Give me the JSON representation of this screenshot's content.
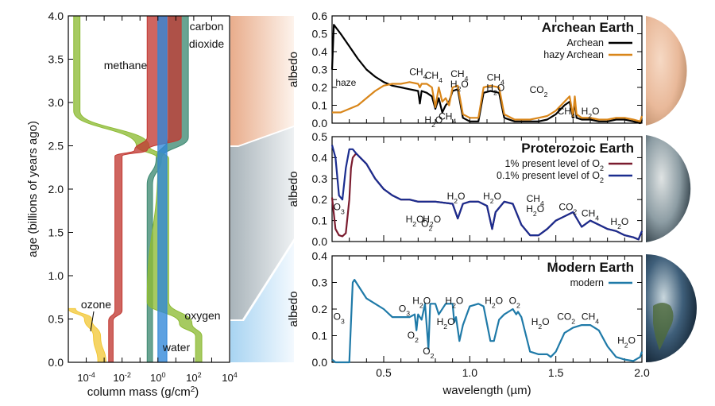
{
  "chart_data": [
    {
      "id": "atmosphere",
      "type": "area",
      "title": "",
      "xlabel": "column mass (g/cm2)",
      "ylabel": "age (billions of years ago)",
      "xscale": "log",
      "xlim_log10": [
        -5,
        4
      ],
      "ylim": [
        0,
        4
      ],
      "xticks": [
        "10-4",
        "10-2",
        "100",
        "102",
        "104"
      ],
      "xticks_log10": [
        -4,
        -2,
        0,
        2,
        4
      ],
      "yticks": [
        "0.0",
        "0.5",
        "1.0",
        "1.5",
        "2.0",
        "2.5",
        "3.0",
        "3.5",
        "4.0"
      ],
      "series": [
        {
          "name": "carbon dioxide",
          "label": "carbon dioxide",
          "color": "#3f8a73",
          "bands": [
            [
              4.0,
              0.6,
              1.7
            ],
            [
              2.6,
              0.6,
              1.7
            ],
            [
              2.35,
              -0.1,
              0.2
            ],
            [
              2.05,
              -0.6,
              -0.3
            ],
            [
              0.0,
              -0.6,
              -0.3
            ]
          ]
        },
        {
          "name": "methane",
          "label": "methane",
          "color": "#c23a33",
          "bands": [
            [
              4.0,
              -0.6,
              1.3
            ],
            [
              2.6,
              -0.6,
              1.3
            ],
            [
              2.45,
              -1.3,
              -0.6
            ],
            [
              2.38,
              -2.4,
              -2.0
            ],
            [
              0.6,
              -2.4,
              -2.0
            ],
            [
              0.48,
              -2.75,
              -2.5
            ],
            [
              0.0,
              -2.75,
              -2.5
            ]
          ]
        },
        {
          "name": "oxygen",
          "label": "oxygen",
          "color": "#8dbb34",
          "bands": [
            [
              4.0,
              -4.7,
              -4.35
            ],
            [
              2.9,
              -4.7,
              -4.35
            ],
            [
              2.5,
              -1.2,
              -0.5
            ],
            [
              2.35,
              0.0,
              0.6
            ],
            [
              0.7,
              -0.6,
              0.6
            ],
            [
              0.45,
              1.2,
              1.9
            ],
            [
              0.3,
              2.1,
              2.45
            ],
            [
              0.0,
              2.1,
              2.45
            ]
          ]
        },
        {
          "name": "water",
          "label": "water",
          "color": "#2f86d8",
          "bands": [
            [
              4.0,
              0.0,
              0.5
            ],
            [
              0.0,
              0.0,
              0.5
            ]
          ]
        },
        {
          "name": "ozone",
          "label": "ozone",
          "color": "#f2c83a",
          "bands": [
            [
              0.62,
              -5.0,
              -4.6
            ],
            [
              0.5,
              -4.1,
              -3.7
            ],
            [
              0.3,
              -3.6,
              -3.2
            ],
            [
              0.0,
              -3.35,
              -2.9
            ]
          ]
        }
      ]
    },
    {
      "id": "archean",
      "type": "line",
      "title": "Archean Earth",
      "xlabel": "",
      "ylabel": "albedo",
      "xlim": [
        0.2,
        2.0
      ],
      "ylim": [
        0,
        0.6
      ],
      "yticks": [
        "0.0",
        "0.1",
        "0.2",
        "0.3",
        "0.4",
        "0.5",
        "0.6"
      ],
      "annotations": [
        {
          "text": "haze",
          "x": 0.28,
          "y": 0.21
        },
        {
          "text": "CH4",
          "x": 0.7,
          "y": 0.27
        },
        {
          "text": "CH4",
          "x": 0.79,
          "y": 0.25
        },
        {
          "text": "H2O",
          "x": 0.79,
          "y": 0.0
        },
        {
          "text": "CH4",
          "x": 0.87,
          "y": 0.02
        },
        {
          "text": "CH4 H2O",
          "x": 0.94,
          "y": 0.2
        },
        {
          "text": "CH4 H2O",
          "x": 1.15,
          "y": 0.18
        },
        {
          "text": "CO2",
          "x": 1.4,
          "y": 0.17
        },
        {
          "text": "CH4",
          "x": 1.56,
          "y": 0.05
        },
        {
          "text": "H2O",
          "x": 1.7,
          "y": 0.05
        }
      ],
      "series": [
        {
          "name": "Archean",
          "color": "#000000",
          "x": [
            0.2,
            0.21,
            0.25,
            0.3,
            0.35,
            0.4,
            0.45,
            0.5,
            0.55,
            0.6,
            0.65,
            0.7,
            0.71,
            0.72,
            0.75,
            0.78,
            0.8,
            0.82,
            0.84,
            0.86,
            0.88,
            0.9,
            0.93,
            0.96,
            1.0,
            1.05,
            1.08,
            1.12,
            1.17,
            1.2,
            1.26,
            1.3,
            1.35,
            1.4,
            1.45,
            1.5,
            1.55,
            1.58,
            1.6,
            1.61,
            1.62,
            1.65,
            1.7,
            1.75,
            1.8,
            1.85,
            1.9,
            1.95,
            1.99,
            2.0
          ],
          "y": [
            0.3,
            0.55,
            0.5,
            0.43,
            0.36,
            0.3,
            0.26,
            0.23,
            0.21,
            0.2,
            0.19,
            0.18,
            0.11,
            0.18,
            0.17,
            0.15,
            0.08,
            0.14,
            0.06,
            0.1,
            0.12,
            0.18,
            0.19,
            0.03,
            0.01,
            0.01,
            0.17,
            0.18,
            0.17,
            0.03,
            0.01,
            0.01,
            0.01,
            0.01,
            0.02,
            0.05,
            0.1,
            0.12,
            0.03,
            0.13,
            0.03,
            0.02,
            0.02,
            0.01,
            0.01,
            0.02,
            0.02,
            0.01,
            0.0,
            0.02
          ]
        },
        {
          "name": "hazy Archean",
          "color": "#d9861a",
          "x": [
            0.2,
            0.25,
            0.3,
            0.35,
            0.4,
            0.45,
            0.5,
            0.55,
            0.6,
            0.65,
            0.7,
            0.71,
            0.72,
            0.75,
            0.78,
            0.8,
            0.82,
            0.84,
            0.86,
            0.88,
            0.9,
            0.93,
            0.96,
            1.0,
            1.05,
            1.08,
            1.12,
            1.17,
            1.2,
            1.26,
            1.3,
            1.35,
            1.4,
            1.45,
            1.5,
            1.55,
            1.58,
            1.6,
            1.61,
            1.62,
            1.65,
            1.7,
            1.75,
            1.8,
            1.85,
            1.9,
            1.95,
            1.99,
            2.0
          ],
          "y": [
            0.06,
            0.06,
            0.08,
            0.1,
            0.14,
            0.18,
            0.21,
            0.22,
            0.22,
            0.23,
            0.22,
            0.2,
            0.22,
            0.22,
            0.2,
            0.09,
            0.2,
            0.12,
            0.14,
            0.1,
            0.2,
            0.21,
            0.05,
            0.03,
            0.03,
            0.2,
            0.21,
            0.2,
            0.05,
            0.02,
            0.02,
            0.02,
            0.03,
            0.04,
            0.07,
            0.12,
            0.15,
            0.04,
            0.15,
            0.05,
            0.03,
            0.03,
            0.02,
            0.02,
            0.03,
            0.03,
            0.02,
            0.01,
            0.04
          ]
        }
      ]
    },
    {
      "id": "proterozoic",
      "type": "line",
      "title": "Proterozoic Earth",
      "xlabel": "",
      "ylabel": "albedo",
      "xlim": [
        0.2,
        2.0
      ],
      "ylim": [
        0,
        0.5
      ],
      "yticks": [
        "0.0",
        "0.1",
        "0.2",
        "0.3",
        "0.4",
        "0.5"
      ],
      "annotations": [
        {
          "text": "O3",
          "x": 0.24,
          "y": 0.15
        },
        {
          "text": "H2O",
          "x": 0.68,
          "y": 0.09
        },
        {
          "text": "O2",
          "x": 0.75,
          "y": 0.07
        },
        {
          "text": "H2O",
          "x": 0.78,
          "y": 0.09
        },
        {
          "text": "H2O",
          "x": 0.92,
          "y": 0.2
        },
        {
          "text": "H2O",
          "x": 1.13,
          "y": 0.2
        },
        {
          "text": "CH4 H2O",
          "x": 1.38,
          "y": 0.14
        },
        {
          "text": "CO2",
          "x": 1.57,
          "y": 0.15
        },
        {
          "text": "CH4",
          "x": 1.7,
          "y": 0.12
        },
        {
          "text": "H2O",
          "x": 1.87,
          "y": 0.08
        }
      ],
      "series": [
        {
          "name": "1% present level of O2",
          "color": "#7a1b2e",
          "x": [
            0.2,
            0.22,
            0.24,
            0.26,
            0.28,
            0.3,
            0.31,
            0.32,
            0.34,
            0.4,
            0.45,
            0.5,
            0.55,
            0.6,
            0.65,
            0.7,
            0.75,
            0.8,
            0.9,
            0.93,
            0.96,
            1.0,
            1.05,
            1.1,
            1.13,
            1.15,
            1.2,
            1.25,
            1.3,
            1.35,
            1.4,
            1.45,
            1.5,
            1.55,
            1.6,
            1.65,
            1.7,
            1.75,
            1.8,
            1.85,
            1.9,
            1.95,
            1.98,
            2.0
          ],
          "y": [
            0.21,
            0.06,
            0.03,
            0.025,
            0.04,
            0.2,
            0.35,
            0.4,
            0.42,
            0.37,
            0.3,
            0.25,
            0.22,
            0.2,
            0.2,
            0.19,
            0.19,
            0.19,
            0.18,
            0.11,
            0.18,
            0.19,
            0.19,
            0.17,
            0.06,
            0.14,
            0.19,
            0.18,
            0.08,
            0.03,
            0.03,
            0.06,
            0.1,
            0.12,
            0.14,
            0.07,
            0.1,
            0.08,
            0.06,
            0.05,
            0.03,
            0.02,
            0.01,
            0.05
          ]
        },
        {
          "name": "0.1% present level of O2",
          "color": "#1b2d8f",
          "x": [
            0.2,
            0.22,
            0.24,
            0.26,
            0.28,
            0.3,
            0.32,
            0.34,
            0.4,
            0.45,
            0.5,
            0.55,
            0.6,
            0.65,
            0.7,
            0.75,
            0.8,
            0.9,
            0.93,
            0.96,
            1.0,
            1.05,
            1.1,
            1.13,
            1.15,
            1.2,
            1.25,
            1.3,
            1.35,
            1.4,
            1.45,
            1.5,
            1.55,
            1.6,
            1.65,
            1.7,
            1.75,
            1.8,
            1.85,
            1.9,
            1.95,
            1.98,
            2.0
          ],
          "y": [
            0.46,
            0.4,
            0.22,
            0.2,
            0.35,
            0.44,
            0.44,
            0.42,
            0.37,
            0.3,
            0.25,
            0.22,
            0.2,
            0.2,
            0.19,
            0.19,
            0.19,
            0.18,
            0.11,
            0.18,
            0.19,
            0.19,
            0.17,
            0.06,
            0.14,
            0.19,
            0.18,
            0.08,
            0.03,
            0.03,
            0.06,
            0.1,
            0.12,
            0.14,
            0.07,
            0.1,
            0.08,
            0.06,
            0.05,
            0.03,
            0.02,
            0.01,
            0.05
          ]
        }
      ]
    },
    {
      "id": "modern",
      "type": "line",
      "title": "Modern Earth",
      "xlabel": "wavelength (µm)",
      "ylabel": "albedo",
      "xlim": [
        0.2,
        2.0
      ],
      "ylim": [
        0,
        0.4
      ],
      "xticks": [
        "0.5",
        "1.0",
        "1.5",
        "2.0"
      ],
      "xticks_val": [
        0.5,
        1.0,
        1.5,
        2.0
      ],
      "yticks": [
        "0.0",
        "0.1",
        "0.2",
        "0.3",
        "0.4"
      ],
      "annotations": [
        {
          "text": "O3",
          "x": 0.24,
          "y": 0.16
        },
        {
          "text": "O3",
          "x": 0.62,
          "y": 0.19
        },
        {
          "text": "H2O",
          "x": 0.72,
          "y": 0.22
        },
        {
          "text": "O2",
          "x": 0.67,
          "y": 0.09
        },
        {
          "text": "O2",
          "x": 0.76,
          "y": 0.03
        },
        {
          "text": "H2O",
          "x": 0.86,
          "y": 0.14
        },
        {
          "text": "H2O",
          "x": 0.91,
          "y": 0.22
        },
        {
          "text": "H2O",
          "x": 1.14,
          "y": 0.22
        },
        {
          "text": "O2",
          "x": 1.26,
          "y": 0.22
        },
        {
          "text": "H2O",
          "x": 1.41,
          "y": 0.14
        },
        {
          "text": "CO2",
          "x": 1.56,
          "y": 0.16
        },
        {
          "text": "CH4",
          "x": 1.7,
          "y": 0.16
        },
        {
          "text": "H2O",
          "x": 1.91,
          "y": 0.07
        }
      ],
      "series": [
        {
          "name": "modern",
          "color": "#1f7aa8",
          "x": [
            0.2,
            0.22,
            0.25,
            0.3,
            0.31,
            0.32,
            0.33,
            0.35,
            0.4,
            0.45,
            0.5,
            0.55,
            0.6,
            0.65,
            0.68,
            0.69,
            0.7,
            0.72,
            0.74,
            0.76,
            0.77,
            0.8,
            0.82,
            0.86,
            0.9,
            0.91,
            0.92,
            0.94,
            0.96,
            1.0,
            1.05,
            1.08,
            1.12,
            1.14,
            1.17,
            1.2,
            1.25,
            1.27,
            1.28,
            1.3,
            1.35,
            1.4,
            1.45,
            1.47,
            1.5,
            1.55,
            1.6,
            1.65,
            1.7,
            1.75,
            1.8,
            1.85,
            1.9,
            1.95,
            1.99,
            2.0
          ],
          "y": [
            0.01,
            0.0,
            0.0,
            0.0,
            0.15,
            0.3,
            0.31,
            0.29,
            0.24,
            0.22,
            0.2,
            0.17,
            0.17,
            0.17,
            0.18,
            0.12,
            0.18,
            0.16,
            0.22,
            0.05,
            0.22,
            0.22,
            0.18,
            0.22,
            0.22,
            0.15,
            0.17,
            0.08,
            0.14,
            0.21,
            0.22,
            0.21,
            0.08,
            0.08,
            0.16,
            0.18,
            0.2,
            0.18,
            0.19,
            0.17,
            0.04,
            0.03,
            0.03,
            0.02,
            0.04,
            0.11,
            0.13,
            0.14,
            0.14,
            0.12,
            0.06,
            0.02,
            0.01,
            0.005,
            0.02,
            0.04
          ]
        }
      ]
    }
  ]
}
